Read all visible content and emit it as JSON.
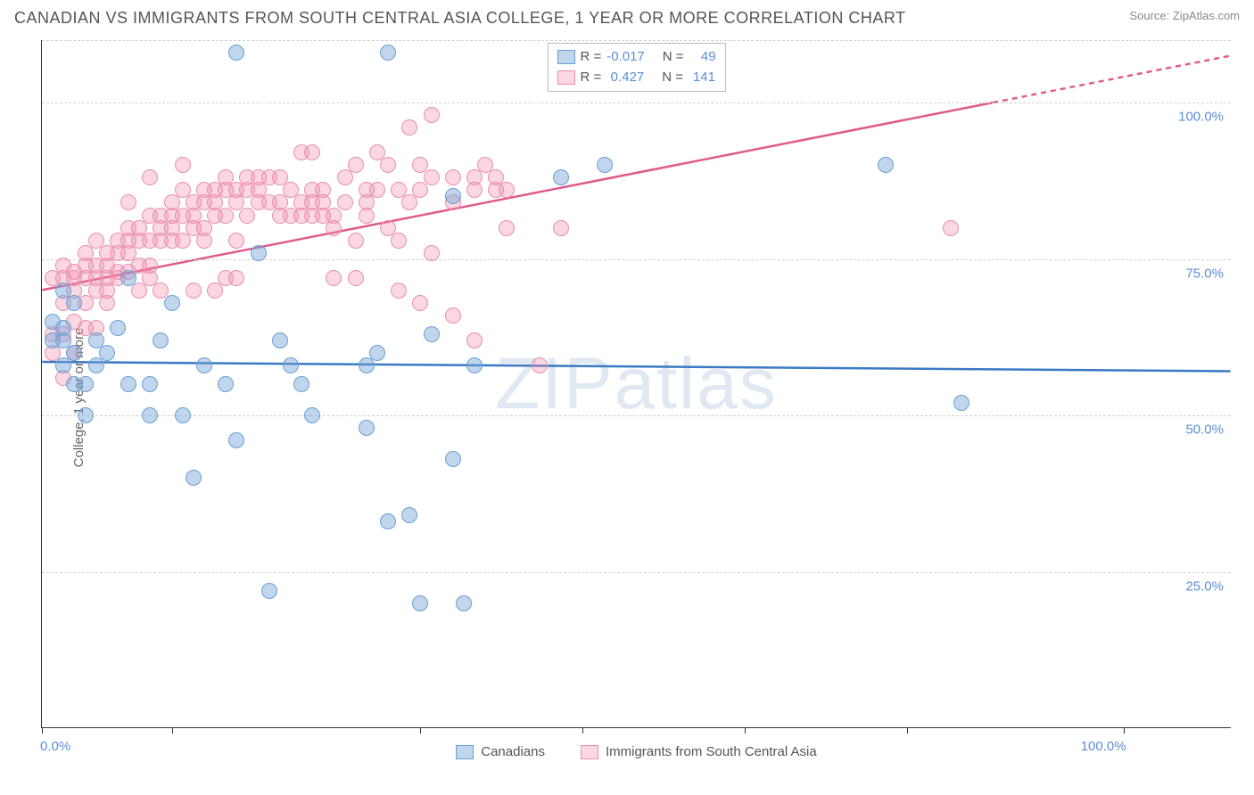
{
  "title": "CANADIAN VS IMMIGRANTS FROM SOUTH CENTRAL ASIA COLLEGE, 1 YEAR OR MORE CORRELATION CHART",
  "source": "Source: ZipAtlas.com",
  "y_axis_title": "College, 1 year or more",
  "watermark": "ZIPatlas",
  "colors": {
    "blue_fill": "rgba(115,165,215,0.45)",
    "blue_stroke": "#6a9fd4",
    "pink_fill": "rgba(240,140,170,0.35)",
    "pink_stroke": "#e88fae",
    "blue_line": "#3a79c4",
    "pink_line": "#e05a8a",
    "tick_text": "#5a8fd6",
    "grid": "#d0d0d0"
  },
  "chart": {
    "xlim": [
      0,
      110
    ],
    "ylim": [
      0,
      110
    ],
    "y_ticks": [
      {
        "v": 25,
        "label": "25.0%"
      },
      {
        "v": 50,
        "label": "50.0%"
      },
      {
        "v": 75,
        "label": "75.0%"
      },
      {
        "v": 100,
        "label": "100.0%"
      },
      {
        "v": 110,
        "label": ""
      }
    ],
    "x_ticks": [
      0,
      12,
      35,
      50,
      65,
      80,
      100
    ],
    "x_labels": [
      {
        "v": 0,
        "label": "0.0%"
      },
      {
        "v": 100,
        "label": "100.0%"
      }
    ],
    "marker_radius": 9
  },
  "legend": {
    "s1": {
      "r_label": "R =",
      "r_value": "-0.017",
      "n_label": "N =",
      "n_value": "49"
    },
    "s2": {
      "r_label": "R =",
      "r_value": "0.427",
      "n_label": "N =",
      "n_value": "141"
    }
  },
  "bottom_legend": {
    "s1": "Canadians",
    "s2": "Immigrants from South Central Asia"
  },
  "trend_lines": {
    "blue": {
      "x1": 0,
      "y1": 58.5,
      "x2": 110,
      "y2": 57.0
    },
    "pink_solid": {
      "x1": 0,
      "y1": 70.0,
      "x2": 88,
      "y2": 100.0
    },
    "pink_dash": {
      "x1": 88,
      "y1": 100.0,
      "x2": 110,
      "y2": 107.5
    }
  },
  "series": {
    "blue": [
      [
        2,
        62
      ],
      [
        2,
        64
      ],
      [
        3,
        68
      ],
      [
        1,
        65
      ],
      [
        2,
        70
      ],
      [
        1,
        62
      ],
      [
        2,
        58
      ],
      [
        3,
        55
      ],
      [
        4,
        55
      ],
      [
        3,
        60
      ],
      [
        5,
        58
      ],
      [
        6,
        60
      ],
      [
        4,
        50
      ],
      [
        5,
        62
      ],
      [
        7,
        64
      ],
      [
        8,
        55
      ],
      [
        10,
        55
      ],
      [
        11,
        62
      ],
      [
        12,
        68
      ],
      [
        10,
        50
      ],
      [
        13,
        50
      ],
      [
        18,
        108
      ],
      [
        15,
        58
      ],
      [
        17,
        55
      ],
      [
        14,
        40
      ],
      [
        18,
        46
      ],
      [
        20,
        76
      ],
      [
        22,
        62
      ],
      [
        23,
        58
      ],
      [
        24,
        55
      ],
      [
        25,
        50
      ],
      [
        21,
        22
      ],
      [
        30,
        58
      ],
      [
        32,
        108
      ],
      [
        30,
        48
      ],
      [
        31,
        60
      ],
      [
        32,
        33
      ],
      [
        36,
        63
      ],
      [
        34,
        34
      ],
      [
        35,
        20
      ],
      [
        38,
        43
      ],
      [
        39,
        20
      ],
      [
        40,
        58
      ],
      [
        38,
        85
      ],
      [
        48,
        88
      ],
      [
        52,
        90
      ],
      [
        78,
        90
      ],
      [
        85,
        52
      ],
      [
        8,
        72
      ]
    ],
    "pink": [
      [
        1,
        60
      ],
      [
        1,
        63
      ],
      [
        2,
        56
      ],
      [
        1,
        72
      ],
      [
        2,
        72
      ],
      [
        2,
        74
      ],
      [
        2,
        68
      ],
      [
        3,
        70
      ],
      [
        3,
        72
      ],
      [
        3,
        65
      ],
      [
        3,
        73
      ],
      [
        4,
        72
      ],
      [
        4,
        74
      ],
      [
        4,
        76
      ],
      [
        4,
        68
      ],
      [
        5,
        72
      ],
      [
        5,
        74
      ],
      [
        5,
        70
      ],
      [
        5,
        78
      ],
      [
        6,
        72
      ],
      [
        6,
        74
      ],
      [
        6,
        76
      ],
      [
        6,
        70
      ],
      [
        7,
        73
      ],
      [
        7,
        76
      ],
      [
        7,
        78
      ],
      [
        7,
        72
      ],
      [
        8,
        73
      ],
      [
        8,
        76
      ],
      [
        8,
        78
      ],
      [
        8,
        80
      ],
      [
        9,
        74
      ],
      [
        9,
        78
      ],
      [
        9,
        80
      ],
      [
        9,
        70
      ],
      [
        10,
        78
      ],
      [
        10,
        82
      ],
      [
        10,
        74
      ],
      [
        10,
        72
      ],
      [
        11,
        78
      ],
      [
        11,
        80
      ],
      [
        11,
        82
      ],
      [
        12,
        78
      ],
      [
        12,
        80
      ],
      [
        12,
        82
      ],
      [
        12,
        84
      ],
      [
        13,
        78
      ],
      [
        13,
        82
      ],
      [
        13,
        86
      ],
      [
        14,
        80
      ],
      [
        14,
        84
      ],
      [
        14,
        82
      ],
      [
        15,
        80
      ],
      [
        15,
        84
      ],
      [
        15,
        86
      ],
      [
        15,
        78
      ],
      [
        16,
        82
      ],
      [
        16,
        84
      ],
      [
        16,
        86
      ],
      [
        17,
        82
      ],
      [
        17,
        86
      ],
      [
        17,
        88
      ],
      [
        18,
        84
      ],
      [
        18,
        86
      ],
      [
        18,
        78
      ],
      [
        19,
        82
      ],
      [
        19,
        86
      ],
      [
        19,
        88
      ],
      [
        20,
        84
      ],
      [
        20,
        88
      ],
      [
        20,
        86
      ],
      [
        21,
        84
      ],
      [
        21,
        88
      ],
      [
        22,
        84
      ],
      [
        22,
        82
      ],
      [
        22,
        88
      ],
      [
        23,
        82
      ],
      [
        23,
        86
      ],
      [
        24,
        84
      ],
      [
        24,
        82
      ],
      [
        25,
        82
      ],
      [
        25,
        86
      ],
      [
        25,
        84
      ],
      [
        26,
        82
      ],
      [
        26,
        84
      ],
      [
        26,
        86
      ],
      [
        27,
        82
      ],
      [
        27,
        80
      ],
      [
        28,
        84
      ],
      [
        28,
        88
      ],
      [
        29,
        90
      ],
      [
        29,
        78
      ],
      [
        30,
        84
      ],
      [
        30,
        86
      ],
      [
        30,
        82
      ],
      [
        31,
        92
      ],
      [
        31,
        86
      ],
      [
        32,
        80
      ],
      [
        32,
        90
      ],
      [
        33,
        86
      ],
      [
        33,
        78
      ],
      [
        34,
        96
      ],
      [
        34,
        84
      ],
      [
        35,
        90
      ],
      [
        35,
        86
      ],
      [
        36,
        88
      ],
      [
        36,
        76
      ],
      [
        38,
        84
      ],
      [
        38,
        88
      ],
      [
        40,
        86
      ],
      [
        40,
        88
      ],
      [
        41,
        90
      ],
      [
        42,
        88
      ],
      [
        42,
        86
      ],
      [
        43,
        86
      ],
      [
        35,
        68
      ],
      [
        38,
        66
      ],
      [
        40,
        62
      ],
      [
        46,
        58
      ],
      [
        43,
        80
      ],
      [
        33,
        70
      ],
      [
        29,
        72
      ],
      [
        27,
        72
      ],
      [
        17,
        72
      ],
      [
        18,
        72
      ],
      [
        16,
        70
      ],
      [
        14,
        70
      ],
      [
        48,
        80
      ],
      [
        84,
        80
      ],
      [
        36,
        98
      ],
      [
        10,
        88
      ],
      [
        8,
        84
      ],
      [
        5,
        64
      ],
      [
        4,
        64
      ],
      [
        3,
        60
      ],
      [
        2,
        63
      ],
      [
        6,
        68
      ],
      [
        13,
        90
      ],
      [
        25,
        92
      ],
      [
        24,
        92
      ],
      [
        11,
        70
      ]
    ]
  }
}
